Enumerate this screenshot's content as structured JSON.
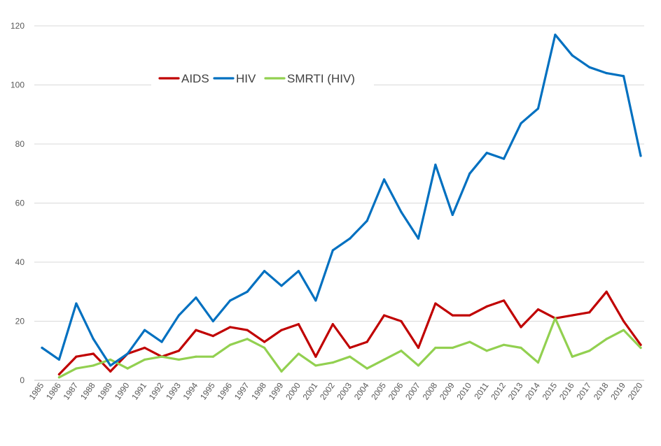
{
  "chart_data": {
    "type": "line",
    "title": "",
    "xlabel": "",
    "ylabel": "",
    "ylim": [
      0,
      120
    ],
    "yticks": [
      0,
      20,
      40,
      60,
      80,
      100,
      120
    ],
    "grid": true,
    "legend_position": "top-left",
    "categories": [
      "1985",
      "1986",
      "1987",
      "1988",
      "1989",
      "1990",
      "1991",
      "1992",
      "1993",
      "1994",
      "1995",
      "1996",
      "1997",
      "1998",
      "1999",
      "2000",
      "2001",
      "2002",
      "2003",
      "2004",
      "2005",
      "2006",
      "2007",
      "2008",
      "2009",
      "2010",
      "2011",
      "2012",
      "2013",
      "2014",
      "2015",
      "2016",
      "2017",
      "2018",
      "2019",
      "2020"
    ],
    "series": [
      {
        "name": "AIDS",
        "color": "#c00000",
        "values": [
          null,
          2,
          8,
          9,
          3,
          9,
          11,
          8,
          10,
          17,
          15,
          18,
          17,
          13,
          17,
          19,
          8,
          19,
          11,
          13,
          22,
          20,
          11,
          26,
          22,
          22,
          25,
          27,
          18,
          24,
          21,
          22,
          23,
          30,
          20,
          12
        ]
      },
      {
        "name": "HIV",
        "color": "#0070c0",
        "values": [
          11,
          7,
          26,
          14,
          5,
          9,
          17,
          13,
          22,
          28,
          20,
          27,
          30,
          37,
          32,
          37,
          27,
          44,
          48,
          54,
          68,
          57,
          48,
          73,
          56,
          70,
          77,
          75,
          87,
          92,
          117,
          110,
          106,
          104,
          103,
          76
        ]
      },
      {
        "name": "SMRTI (HIV)",
        "color": "#92d050",
        "values": [
          null,
          1,
          4,
          5,
          7,
          4,
          7,
          8,
          7,
          8,
          8,
          12,
          14,
          11,
          3,
          9,
          5,
          6,
          8,
          4,
          7,
          10,
          5,
          11,
          11,
          13,
          10,
          12,
          11,
          6,
          21,
          8,
          10,
          14,
          17,
          11
        ]
      }
    ]
  }
}
